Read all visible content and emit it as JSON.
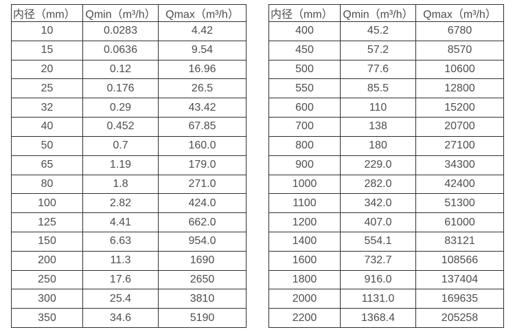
{
  "headers": [
    "内径（mm）",
    "Qmin（m³/h）",
    "Qmax（m³/h）"
  ],
  "left_table": {
    "rows": [
      [
        "10",
        "0.0283",
        "4.42"
      ],
      [
        "15",
        "0.0636",
        "9.54"
      ],
      [
        "20",
        "0.12",
        "16.96"
      ],
      [
        "25",
        "0.176",
        "26.5"
      ],
      [
        "32",
        "0.29",
        "43.42"
      ],
      [
        "40",
        "0.452",
        "67.85"
      ],
      [
        "50",
        "0.7",
        "160.0"
      ],
      [
        "65",
        "1.19",
        "179.0"
      ],
      [
        "80",
        "1.8",
        "271.0"
      ],
      [
        "100",
        "2.82",
        "424.0"
      ],
      [
        "125",
        "4.41",
        "662.0"
      ],
      [
        "150",
        "6.63",
        "954.0"
      ],
      [
        "200",
        "11.3",
        "1690"
      ],
      [
        "250",
        "17.6",
        "2650"
      ],
      [
        "300",
        "25.4",
        "3810"
      ],
      [
        "350",
        "34.6",
        "5190"
      ]
    ]
  },
  "right_table": {
    "rows": [
      [
        "400",
        "45.2",
        "6780"
      ],
      [
        "450",
        "57.2",
        "8570"
      ],
      [
        "500",
        "77.6",
        "10600"
      ],
      [
        "550",
        "85.5",
        "12800"
      ],
      [
        "600",
        "110",
        "15200"
      ],
      [
        "700",
        "138",
        "20700"
      ],
      [
        "800",
        "180",
        "27100"
      ],
      [
        "900",
        "229.0",
        "34300"
      ],
      [
        "1000",
        "282.0",
        "42400"
      ],
      [
        "1100",
        "342.0",
        "51300"
      ],
      [
        "1200",
        "407.0",
        "61000"
      ],
      [
        "1400",
        "554.1",
        "83121"
      ],
      [
        "1600",
        "732.7",
        "108566"
      ],
      [
        "1800",
        "916.0",
        "137404"
      ],
      [
        "2000",
        "1131.0",
        "169635"
      ],
      [
        "2200",
        "1368.4",
        "205258"
      ]
    ]
  },
  "colors": {
    "border": "#2e2e2e",
    "text": "#4d4d4d",
    "background": "#ffffff"
  },
  "chart_data": {
    "type": "table",
    "title": "",
    "columns": [
      "内径（mm）",
      "Qmin（m³/h）",
      "Qmax（m³/h）"
    ],
    "tables": [
      {
        "name": "small-diameters",
        "diameter_mm": [
          10,
          15,
          20,
          25,
          32,
          40,
          50,
          65,
          80,
          100,
          125,
          150,
          200,
          250,
          300,
          350
        ],
        "qmin_m3h": [
          0.0283,
          0.0636,
          0.12,
          0.176,
          0.29,
          0.452,
          0.7,
          1.19,
          1.8,
          2.82,
          4.41,
          6.63,
          11.3,
          17.6,
          25.4,
          34.6
        ],
        "qmax_m3h": [
          4.42,
          9.54,
          16.96,
          26.5,
          43.42,
          67.85,
          160.0,
          179.0,
          271.0,
          424.0,
          662.0,
          954.0,
          1690,
          2650,
          3810,
          5190
        ]
      },
      {
        "name": "large-diameters",
        "diameter_mm": [
          400,
          450,
          500,
          550,
          600,
          700,
          800,
          900,
          1000,
          1100,
          1200,
          1400,
          1600,
          1800,
          2000,
          2200
        ],
        "qmin_m3h": [
          45.2,
          57.2,
          77.6,
          85.5,
          110,
          138,
          180,
          229.0,
          282.0,
          342.0,
          407.0,
          554.1,
          732.7,
          916.0,
          1131.0,
          1368.4
        ],
        "qmax_m3h": [
          6780,
          8570,
          10600,
          12800,
          15200,
          20700,
          27100,
          34300,
          42400,
          51300,
          61000,
          83121,
          108566,
          137404,
          169635,
          205258
        ]
      }
    ]
  }
}
